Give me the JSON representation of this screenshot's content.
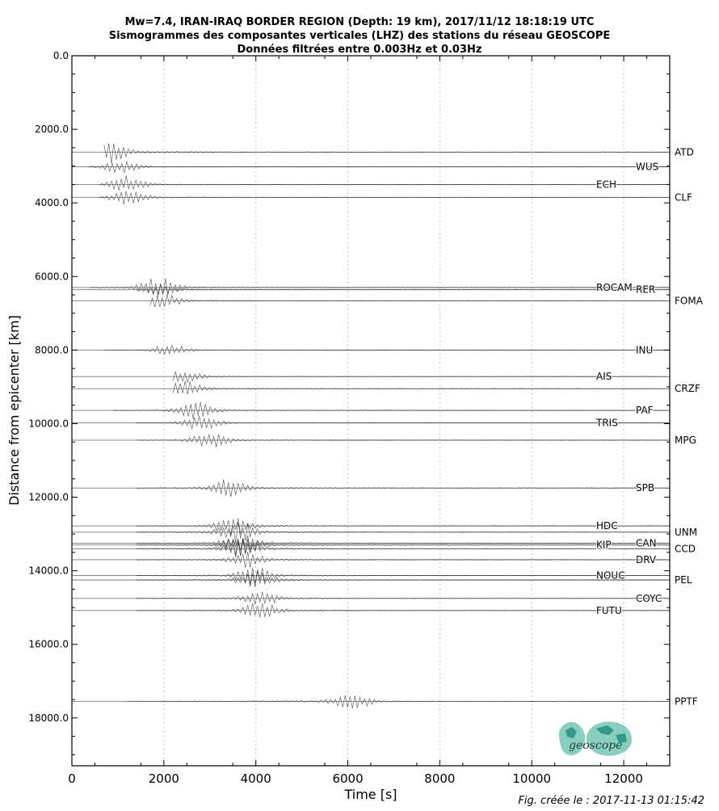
{
  "chart_data": {
    "type": "line",
    "title": [
      "Mw=7.4, IRAN-IRAQ BORDER REGION (Depth: 19 km), 2017/11/12 18:18:19 UTC",
      "Sismogrammes des composantes verticales (LHZ) des stations du réseau GEOSCOPE",
      "Données filtrées entre 0.003Hz et 0.03Hz"
    ],
    "xlabel": "Time [s]",
    "ylabel": "Distance from epicenter [km]",
    "xlim": [
      0,
      13000
    ],
    "ylim": [
      19300,
      0
    ],
    "y_inverted": true,
    "x_ticks": [
      "0",
      "2000",
      "4000",
      "6000",
      "8000",
      "10000",
      "12000"
    ],
    "x_tick_values": [
      0,
      2000,
      4000,
      6000,
      8000,
      10000,
      12000
    ],
    "y_ticks": [
      "0.0",
      "2000.0",
      "4000.0",
      "6000.0",
      "8000.0",
      "10000.0",
      "12000.0",
      "14000.0",
      "16000.0",
      "18000.0"
    ],
    "y_tick_values": [
      0,
      2000,
      4000,
      6000,
      8000,
      10000,
      12000,
      14000,
      16000,
      18000
    ],
    "grid": "vertical dotted",
    "stations": [
      {
        "name": "ATD",
        "distance": 2620,
        "label_side": "right",
        "onset": 700,
        "peak": 800,
        "amp": 1.0,
        "end": 13000
      },
      {
        "name": "WUS",
        "distance": 3020,
        "label_side": "mid",
        "onset": 350,
        "peak": 1050,
        "amp": 0.6,
        "end": 13000
      },
      {
        "name": "ECH",
        "distance": 3500,
        "label_side": "left",
        "onset": 600,
        "peak": 1200,
        "amp": 0.8,
        "end": 13000
      },
      {
        "name": "CLF",
        "distance": 3850,
        "label_side": "right",
        "onset": 600,
        "peak": 1200,
        "amp": 0.8,
        "end": 13000
      },
      {
        "name": "ROCAM",
        "distance": 6300,
        "label_side": "left",
        "onset": 400,
        "peak": 1850,
        "amp": 1.0,
        "end": 13000
      },
      {
        "name": "RER",
        "distance": 6360,
        "label_side": "mid",
        "onset": 1400,
        "peak": 1900,
        "amp": 0.5,
        "end": 13000
      },
      {
        "name": "FOMA",
        "distance": 6660,
        "label_side": "right",
        "onset": 1700,
        "peak": 1950,
        "amp": 0.7,
        "end": 13000
      },
      {
        "name": "INU",
        "distance": 8000,
        "label_side": "mid",
        "onset": 700,
        "peak": 2150,
        "amp": 0.5,
        "end": 13000
      },
      {
        "name": "AIS",
        "distance": 8720,
        "label_side": "left",
        "onset": 2200,
        "peak": 2400,
        "amp": 0.6,
        "end": 13000
      },
      {
        "name": "CRZF",
        "distance": 9050,
        "label_side": "right",
        "onset": 2200,
        "peak": 2400,
        "amp": 0.9,
        "end": 13000
      },
      {
        "name": "PAF",
        "distance": 9640,
        "label_side": "mid",
        "onset": 900,
        "peak": 2700,
        "amp": 0.8,
        "end": 13000
      },
      {
        "name": "TRIS",
        "distance": 9980,
        "label_side": "left",
        "onset": 1400,
        "peak": 2800,
        "amp": 0.7,
        "end": 13000
      },
      {
        "name": "MPG",
        "distance": 10450,
        "label_side": "right",
        "onset": 1400,
        "peak": 3000,
        "amp": 0.7,
        "end": 13000
      },
      {
        "name": "SPB",
        "distance": 11750,
        "label_side": "mid",
        "onset": 1400,
        "peak": 3400,
        "amp": 0.8,
        "end": 13000
      },
      {
        "name": "HDC",
        "distance": 12780,
        "label_side": "left",
        "onset": 1400,
        "peak": 3500,
        "amp": 0.9,
        "end": 13000
      },
      {
        "name": "UNM",
        "distance": 12950,
        "label_side": "right",
        "onset": 1400,
        "peak": 3600,
        "amp": 1.0,
        "end": 13000
      },
      {
        "name": "KIP",
        "distance": 13300,
        "label_side": "left",
        "onset": 1400,
        "peak": 3650,
        "amp": 1.0,
        "end": 13000
      },
      {
        "name": "CAN",
        "distance": 13250,
        "label_side": "mid",
        "onset": 1400,
        "peak": 3700,
        "amp": 0.9,
        "end": 13000
      },
      {
        "name": "CCD",
        "distance": 13400,
        "label_side": "right",
        "onset": 1400,
        "peak": 3700,
        "amp": 0.9,
        "end": 13000
      },
      {
        "name": "DRV",
        "distance": 13700,
        "label_side": "mid",
        "onset": 1400,
        "peak": 3800,
        "amp": 0.8,
        "end": 13000
      },
      {
        "name": "NOUC",
        "distance": 14130,
        "label_side": "left",
        "onset": 1400,
        "peak": 3950,
        "amp": 0.9,
        "end": 13000
      },
      {
        "name": "PEL",
        "distance": 14250,
        "label_side": "right",
        "onset": 1400,
        "peak": 4000,
        "amp": 0.8,
        "end": 13000
      },
      {
        "name": "COYC",
        "distance": 14750,
        "label_side": "mid",
        "onset": 1400,
        "peak": 4100,
        "amp": 0.7,
        "end": 13000
      },
      {
        "name": "FUTU",
        "distance": 15080,
        "label_side": "left",
        "onset": 1400,
        "peak": 4100,
        "amp": 0.8,
        "end": 13000
      },
      {
        "name": "PPTF",
        "distance": 17550,
        "label_side": "right",
        "onset": 1200,
        "peak": 6100,
        "amp": 0.8,
        "end": 13000
      }
    ],
    "trace_color": "#000000",
    "baseline_color": "#777777"
  },
  "logo": {
    "text": "geoscope",
    "color": "#2aa590"
  },
  "credit": "Fig. créée le : 2017-11-13 01:15:42"
}
